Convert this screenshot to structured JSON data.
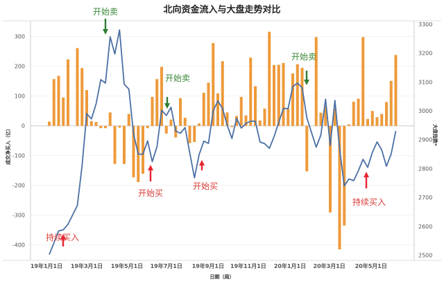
{
  "chart_data": {
    "type": "bar+line",
    "title": "北向资金流入与大盘走势对比",
    "xlabel": "日期（周）",
    "ylabel_left": "成交净买入（亿）",
    "ylabel_right": "大盘指数*",
    "ylim_left": [
      -450,
      350
    ],
    "ylim_right": [
      2500,
      3300
    ],
    "yticks_left": [
      "300",
      "200",
      "100",
      "0",
      "-100",
      "-200",
      "-300",
      "-400"
    ],
    "yticks_left_values": [
      300,
      200,
      100,
      0,
      -100,
      -200,
      -300,
      -400
    ],
    "yticks_right": [
      "3300",
      "3200",
      "3100",
      "3000",
      "2900",
      "2800",
      "2700",
      "2600",
      "2500"
    ],
    "yticks_right_values": [
      3300,
      3200,
      3100,
      3000,
      2900,
      2800,
      2700,
      2600,
      2500
    ],
    "xticks": [
      "19年1月1日",
      "19年3月1日",
      "19年5月1日",
      "19年7月1日",
      "19年9月1日",
      "19年11月1日",
      "20年1月1日",
      "20年3月1日",
      "20年5月1日"
    ],
    "xticks_week_index": [
      -0.6,
      8,
      16.6,
      25,
      33.9,
      42.5,
      51.4,
      59.8,
      68.7
    ],
    "grid": true,
    "series": [
      {
        "name": "成交净买入（亿）",
        "type": "bar",
        "axis": "left",
        "color": "#EE9A3A",
        "values": [
          14,
          157,
          168,
          95,
          223,
          0,
          261,
          194,
          120,
          16,
          13,
          -8,
          -8,
          45,
          -128,
          -6,
          -128,
          40,
          -173,
          -189,
          -161,
          -8,
          97,
          157,
          198,
          -26,
          21,
          -39,
          93,
          27,
          -58,
          -54,
          8,
          111,
          145,
          278,
          109,
          217,
          45,
          -4,
          33,
          97,
          35,
          229,
          133,
          18,
          58,
          316,
          204,
          205,
          211,
          58,
          176,
          207,
          195,
          -153,
          0,
          298,
          44,
          66,
          -291,
          58,
          -415,
          -335,
          5,
          81,
          91,
          298,
          23,
          50,
          29,
          40,
          80,
          151,
          238
        ]
      },
      {
        "name": "大盘指数*",
        "type": "line",
        "axis": "right",
        "color": "#4A6FA5",
        "values": [
          2502,
          2543,
          2584,
          2588,
          2607,
          2640,
          2672,
          2810,
          2990,
          2972,
          3024,
          3108,
          3096,
          3256,
          3197,
          3280,
          3092,
          3075,
          2920,
          2850,
          2850,
          2896,
          2824,
          2876,
          3002,
          2984,
          3012,
          2930,
          2922,
          2942,
          2855,
          2768,
          2848,
          2895,
          2887,
          3000,
          3034,
          3008,
          2950,
          2904,
          2974,
          2940,
          2956,
          2964,
          2964,
          2892,
          2886,
          2870,
          2910,
          2960,
          3008,
          3008,
          3084,
          3096,
          3080,
          2976,
          2925,
          2874,
          2916,
          3040,
          2880,
          3036,
          2868,
          2740,
          2764,
          2758,
          2792,
          2832,
          2804,
          2856,
          2892,
          2864,
          2808,
          2850,
          2930
        ]
      }
    ],
    "annotations": [
      {
        "text": "开始卖",
        "type": "sell",
        "week_index": 12
      },
      {
        "text": "开始卖",
        "type": "sell",
        "week_index": 25
      },
      {
        "text": "开始卖",
        "type": "sell",
        "week_index": 55
      },
      {
        "text": "持续买入",
        "type": "buy",
        "week_index": 3
      },
      {
        "text": "开始买",
        "type": "buy",
        "week_index": 22
      },
      {
        "text": "开始买",
        "type": "buy",
        "week_index": 33
      },
      {
        "text": "持续买入",
        "type": "buy",
        "week_index": 68
      }
    ],
    "colors": {
      "sell": "#2E7D32",
      "sell_text": "#3A8A3A",
      "buy": "#E8232F",
      "buy_text": "#D9403A"
    }
  }
}
